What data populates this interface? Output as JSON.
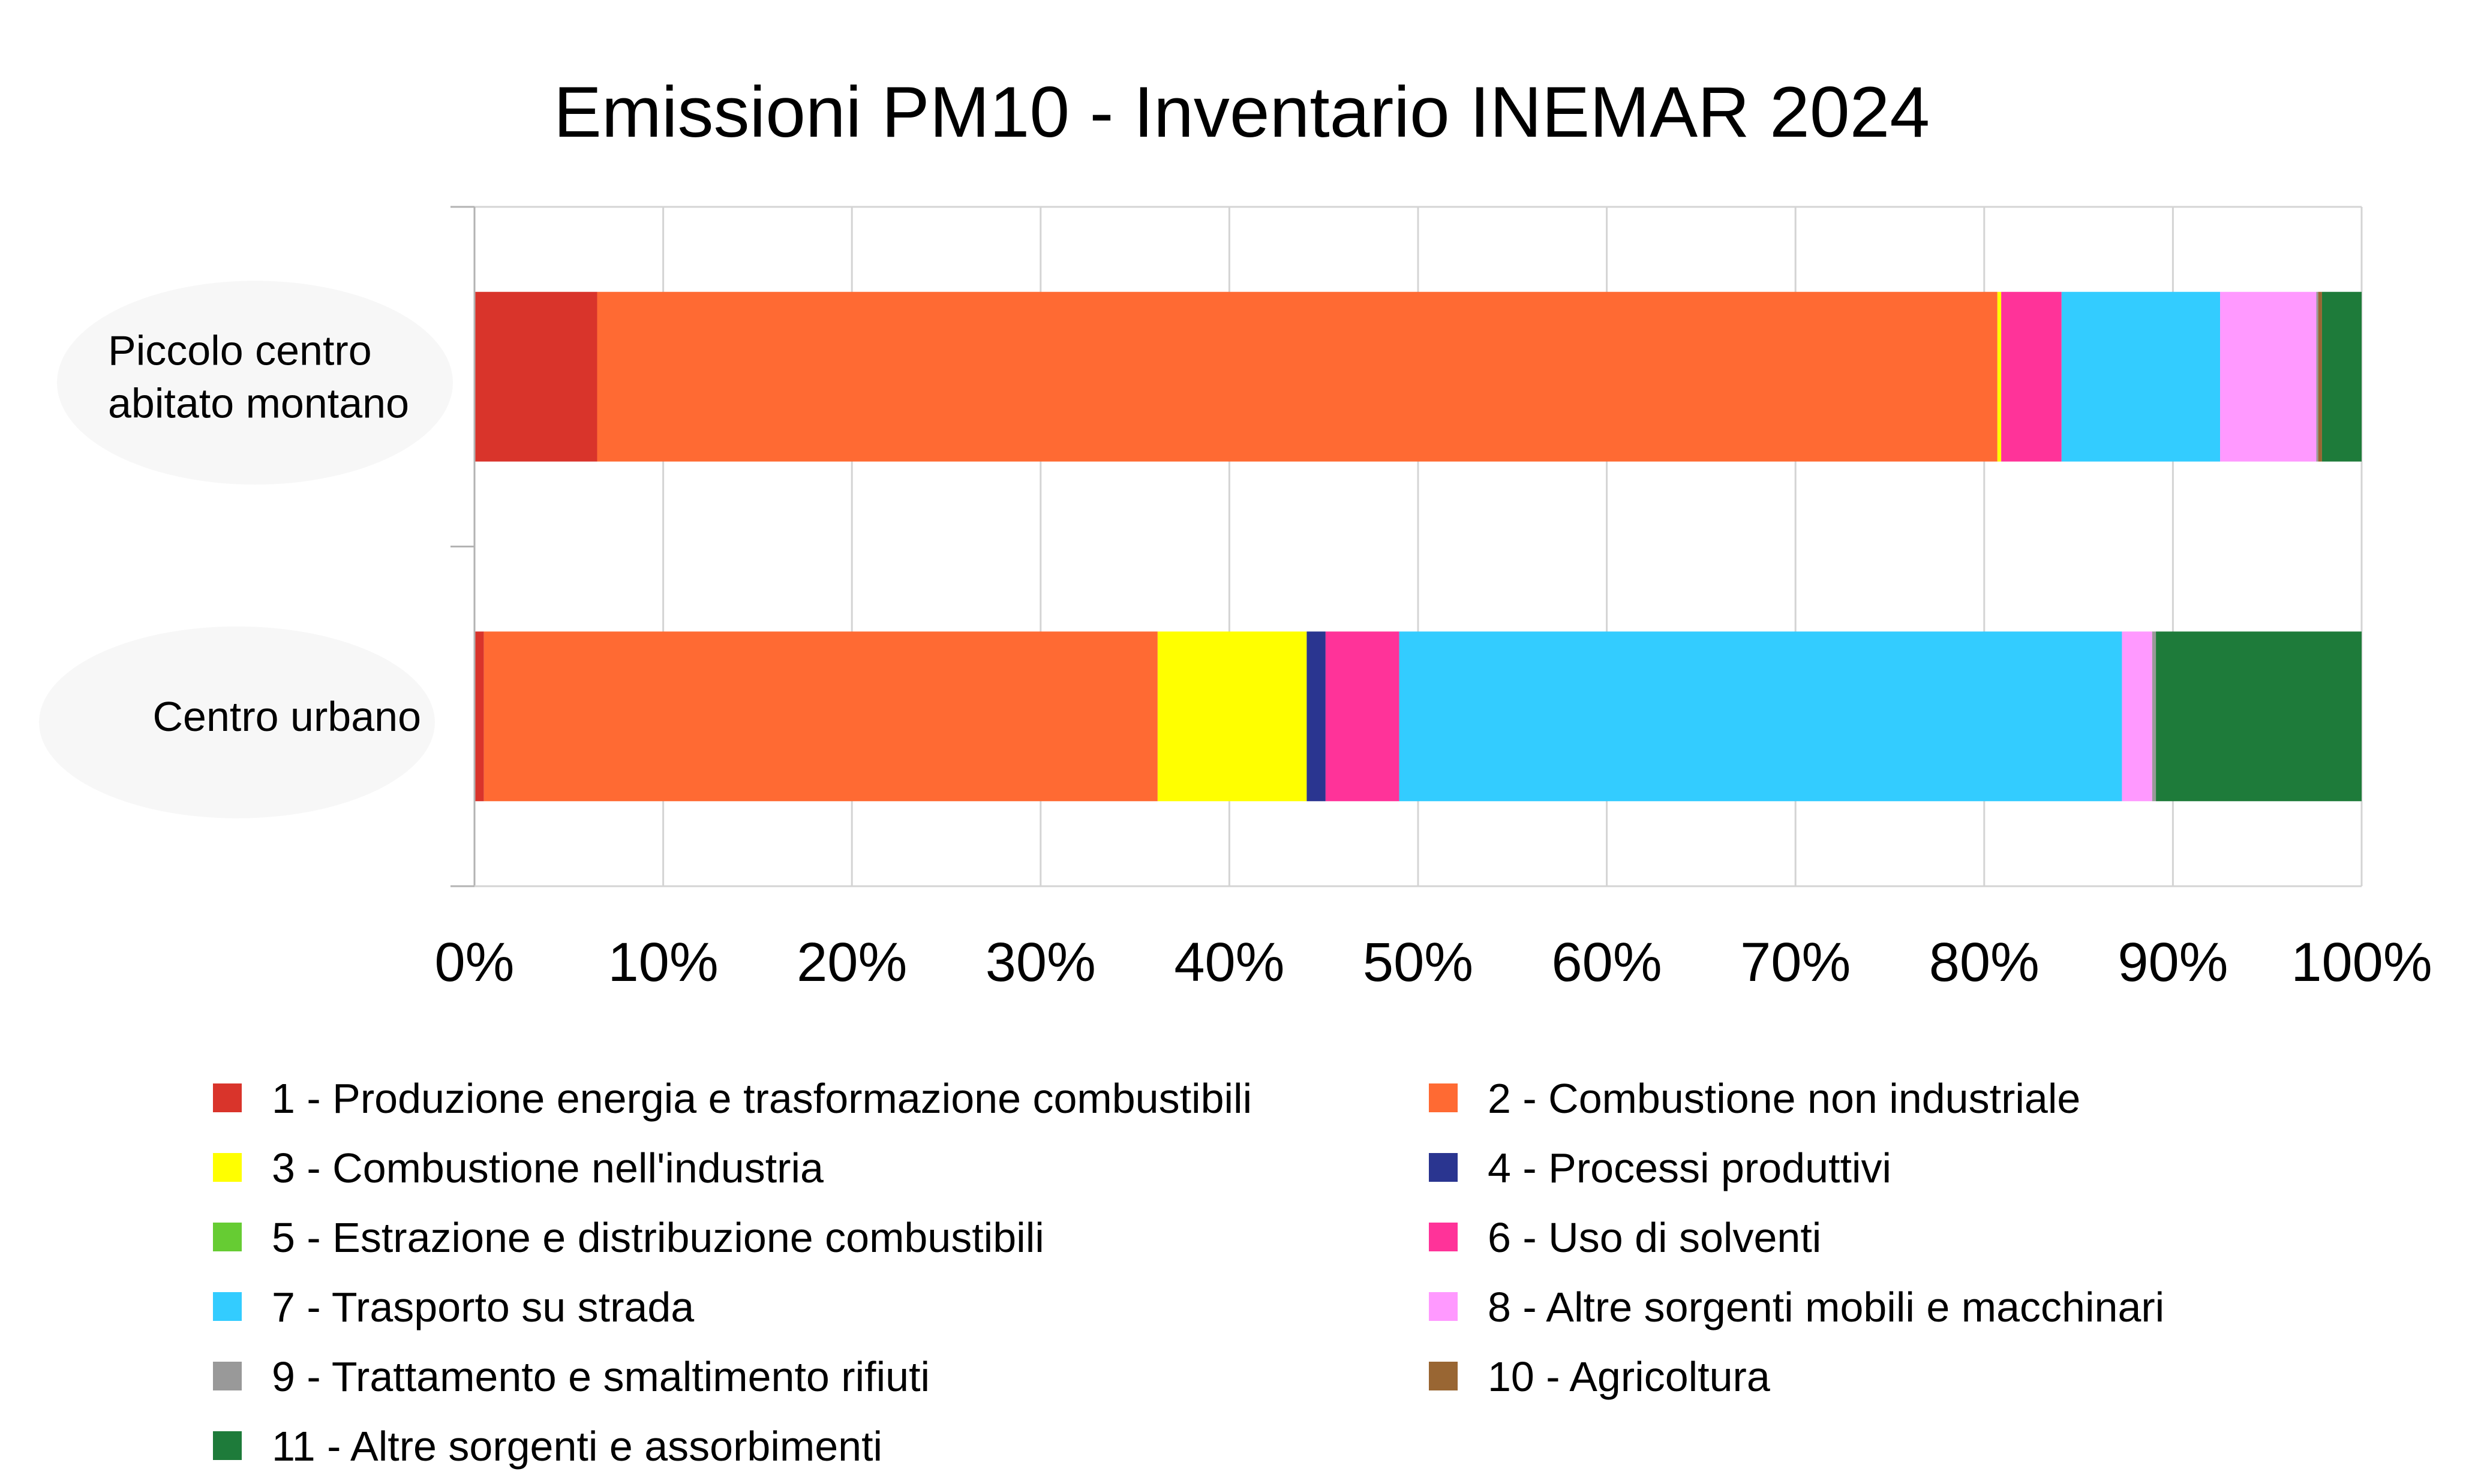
{
  "chart_data": {
    "type": "bar",
    "orientation": "horizontal",
    "stacked": "percent",
    "title": "Emissioni PM10 - Inventario INEMAR 2024",
    "xlabel": "",
    "ylabel": "",
    "xlim": [
      0,
      100
    ],
    "grid": true,
    "legend_position": "bottom",
    "x_ticks": [
      "0%",
      "10%",
      "20%",
      "30%",
      "40%",
      "50%",
      "60%",
      "70%",
      "80%",
      "90%",
      "100%"
    ],
    "categories": [
      {
        "lines": [
          "Piccolo centro",
          "abitato montano"
        ]
      },
      {
        "lines": [
          "Centro urbano"
        ]
      }
    ],
    "series": [
      {
        "name": "1 - Produzione energia e trasformazione combustibili",
        "color": "#d9342b",
        "values": [
          6.5,
          0.5
        ]
      },
      {
        "name": "2 - Combustione non industriale",
        "color": "#ff6a33",
        "values": [
          74.2,
          35.7
        ]
      },
      {
        "name": "3 - Combustione nell'industria",
        "color": "#ffff00",
        "values": [
          0.2,
          7.9
        ]
      },
      {
        "name": "4 - Processi produttivi",
        "color": "#2a3590",
        "values": [
          0.0,
          1.0
        ]
      },
      {
        "name": "5 - Estrazione e distribuzione combustibili",
        "color": "#66cc33",
        "values": [
          0.0,
          0.0
        ]
      },
      {
        "name": "6 - Uso di solventi",
        "color": "#ff3399",
        "values": [
          3.2,
          3.9
        ]
      },
      {
        "name": "7 - Trasporto su strada",
        "color": "#33ccff",
        "values": [
          8.4,
          38.3
        ]
      },
      {
        "name": "8 - Altre sorgenti mobili e macchinari",
        "color": "#ff99ff",
        "values": [
          5.1,
          1.6
        ]
      },
      {
        "name": "9 - Trattamento e smaltimento rifiuti",
        "color": "#999999",
        "values": [
          0.1,
          0.2
        ]
      },
      {
        "name": "10 - Agricoltura",
        "color": "#996633",
        "values": [
          0.2,
          0.0
        ]
      },
      {
        "name": "11 - Altre sorgenti e assorbimenti",
        "color": "#1e7b3a",
        "values": [
          2.1,
          10.9
        ]
      }
    ]
  }
}
